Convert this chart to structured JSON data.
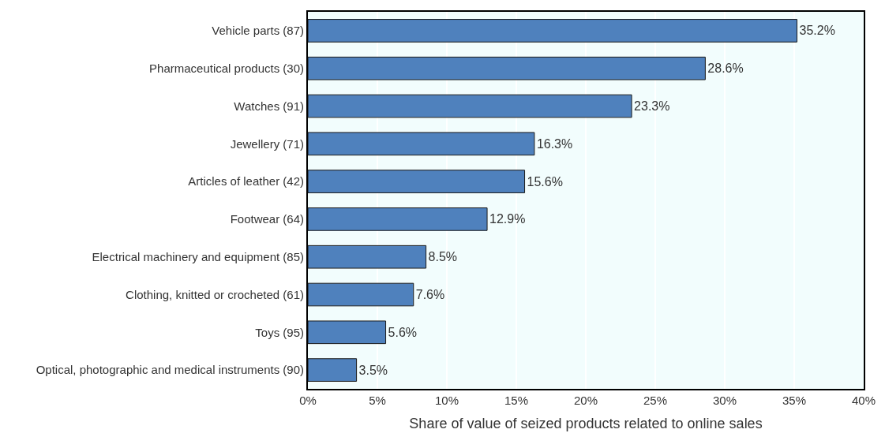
{
  "chart_data": {
    "type": "bar",
    "orientation": "horizontal",
    "xlabel": "Share of value of seized products related to online sales",
    "categories": [
      "Vehicle parts (87)",
      "Pharmaceutical products (30)",
      "Watches (91)",
      "Jewellery (71)",
      "Articles of leather (42)",
      "Footwear (64)",
      "Electrical machinery and equipment (85)",
      "Clothing, knitted or crocheted (61)",
      "Toys (95)",
      "Optical, photographic and medical instruments (90)"
    ],
    "values": [
      35.2,
      28.6,
      23.3,
      16.3,
      15.6,
      12.9,
      8.5,
      7.6,
      5.6,
      3.5
    ],
    "value_labels": [
      "35.2%",
      "28.6%",
      "23.3%",
      "16.3%",
      "15.6%",
      "12.9%",
      "8.5%",
      "7.6%",
      "5.6%",
      "3.5%"
    ],
    "color": "#4f81bd",
    "xlim": [
      0,
      40
    ],
    "xticks": [
      {
        "value": 0,
        "label": "0%"
      },
      {
        "value": 5,
        "label": "5%"
      },
      {
        "value": 10,
        "label": "10%"
      },
      {
        "value": 15,
        "label": "15%"
      },
      {
        "value": 20,
        "label": "20%"
      },
      {
        "value": 25,
        "label": "25%"
      },
      {
        "value": 30,
        "label": "30%"
      },
      {
        "value": 35,
        "label": "35%"
      },
      {
        "value": 40,
        "label": "40%"
      }
    ],
    "grid": "x",
    "legend": false
  }
}
